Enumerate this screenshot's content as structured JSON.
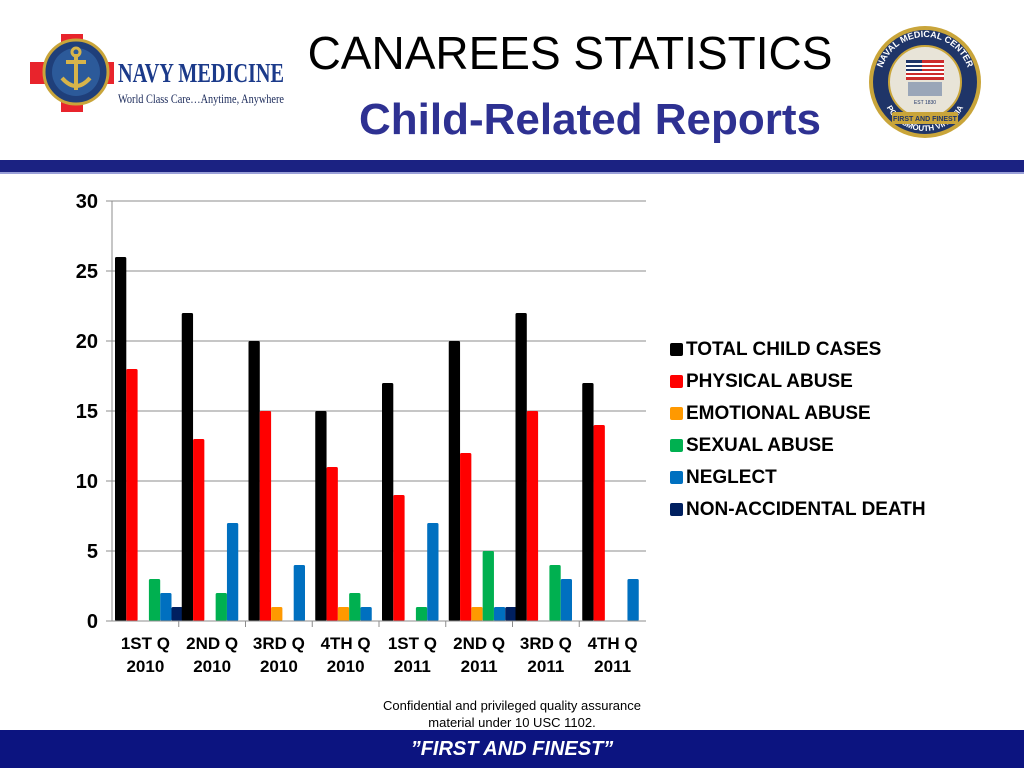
{
  "header": {
    "logo_left": {
      "name": "NAVY MEDICINE",
      "tagline": "World Class Care…Anytime, Anywhere"
    },
    "logo_right": {
      "ring_top": "NAVAL MEDICAL CENTER",
      "ring_bottom": "PORTSMOUTH VIRGINIA",
      "banner": "FIRST AND FINEST",
      "year": "EST 1830"
    },
    "title": "CANAREES STATISTICS",
    "subtitle": "Child-Related Reports"
  },
  "footnote": [
    "Confidential and privileged quality assurance",
    "material under 10 USC 1102."
  ],
  "footer": {
    "text": "”FIRST AND FINEST”"
  },
  "colors": {
    "header_bar": "#1b2282",
    "footer_bar": "#0c1480",
    "subtitle": "#2e3192"
  },
  "chart_data": {
    "type": "bar",
    "title": "",
    "xlabel": "",
    "ylabel": "",
    "categories": [
      [
        "1ST Q",
        "2010"
      ],
      [
        "2ND Q",
        "2010"
      ],
      [
        "3RD Q",
        "2010"
      ],
      [
        "4TH Q",
        "2010"
      ],
      [
        "1ST Q",
        "2011"
      ],
      [
        "2ND Q",
        "2011"
      ],
      [
        "3RD Q",
        "2011"
      ],
      [
        "4TH Q",
        "2011"
      ]
    ],
    "ylim": [
      0,
      30
    ],
    "yticks": [
      0,
      5,
      10,
      15,
      20,
      25,
      30
    ],
    "grid": true,
    "legend_position": "right",
    "series": [
      {
        "name": "TOTAL CHILD CASES",
        "color": "#000000",
        "values": [
          26,
          22,
          20,
          15,
          17,
          20,
          22,
          17
        ]
      },
      {
        "name": "PHYSICAL ABUSE",
        "color": "#ff0000",
        "values": [
          18,
          13,
          15,
          11,
          9,
          12,
          15,
          14
        ]
      },
      {
        "name": "EMOTIONAL ABUSE",
        "color": "#ff9900",
        "values": [
          0,
          0,
          1,
          1,
          0,
          1,
          0,
          0
        ]
      },
      {
        "name": "SEXUAL ABUSE",
        "color": "#00b050",
        "values": [
          3,
          2,
          0,
          2,
          1,
          5,
          4,
          0
        ]
      },
      {
        "name": "NEGLECT",
        "color": "#0070c0",
        "values": [
          2,
          7,
          4,
          1,
          7,
          1,
          3,
          3
        ]
      },
      {
        "name": "NON-ACCIDENTAL DEATH",
        "color": "#002060",
        "values": [
          1,
          0,
          0,
          0,
          0,
          1,
          0,
          0
        ]
      }
    ]
  }
}
